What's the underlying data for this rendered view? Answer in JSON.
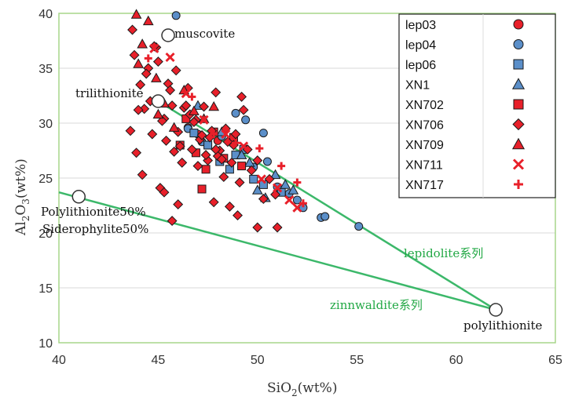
{
  "colors": {
    "red": "#e8202a",
    "blue": "#5b8fc9",
    "green": "#3cb86a",
    "grid": "#d9d9d9",
    "plot_border": "#a7d58a"
  },
  "chart_data": {
    "type": "scatter",
    "xlabel_main": "SiO",
    "xlabel_sub": "2",
    "xlabel_tail": "(wt%)",
    "ylabel_main": "Al",
    "ylabel_sub1": "2",
    "ylabel_mid": "O",
    "ylabel_sub2": "3",
    "ylabel_tail": "(wt%)",
    "xlim": [
      40,
      65
    ],
    "ylim": [
      10,
      40
    ],
    "xticks": [
      "40",
      "45",
      "50",
      "55",
      "60",
      "65"
    ],
    "yticks": [
      "10",
      "15",
      "20",
      "25",
      "30",
      "35",
      "40"
    ],
    "grid": "horizontal",
    "legend_position": "top-right",
    "series": [
      {
        "name": "lep03",
        "marker": "circle",
        "color": "#e8202a",
        "x": [
          46.5,
          47.0,
          48.0
        ],
        "y": [
          29.6,
          29.0,
          28.4
        ]
      },
      {
        "name": "lep04",
        "marker": "circle",
        "color": "#5b8fc9",
        "x": [
          45.9,
          46.5,
          47.2,
          48.2,
          48.9,
          49.4,
          49.8,
          50.3,
          50.5,
          51.0,
          51.6,
          52.0,
          52.3,
          53.2,
          53.4,
          55.1
        ],
        "y": [
          39.8,
          29.5,
          28.3,
          28.8,
          30.9,
          30.3,
          26.0,
          29.1,
          26.5,
          24.2,
          23.6,
          23.0,
          22.3,
          21.4,
          21.5,
          20.6
        ]
      },
      {
        "name": "lep06",
        "marker": "square",
        "color": "#5b8fc9",
        "x": [
          46.8,
          47.5,
          48.1,
          48.6,
          48.9,
          49.3,
          49.8,
          50.3,
          51.2
        ],
        "y": [
          29.1,
          28.0,
          26.5,
          25.8,
          27.1,
          27.6,
          24.9,
          24.4,
          23.7
        ]
      },
      {
        "name": "XN1",
        "marker": "triangle",
        "color": "#5b8fc9",
        "x": [
          47.0,
          48.2,
          48.7,
          49.2,
          49.6,
          50.0,
          50.4,
          50.9,
          51.4,
          51.8
        ],
        "y": [
          31.6,
          29.2,
          28.6,
          27.1,
          26.4,
          23.9,
          23.2,
          25.3,
          24.4,
          23.9
        ]
      },
      {
        "name": "XN702",
        "marker": "square",
        "color": "#e8202a",
        "x": [
          46.4,
          46.9,
          47.4,
          47.8,
          48.3,
          48.8,
          49.2,
          47.2,
          46.1
        ],
        "y": [
          30.4,
          27.3,
          25.8,
          29.2,
          26.8,
          28.7,
          26.1,
          24.0,
          28.0
        ]
      },
      {
        "name": "XN706",
        "marker": "diamond",
        "color": "#e8202a",
        "x": [
          43.6,
          43.9,
          44.1,
          44.3,
          44.5,
          44.7,
          44.9,
          45.1,
          45.3,
          45.5,
          45.7,
          45.9,
          46.1,
          46.3,
          46.5,
          46.7,
          46.9,
          47.1,
          47.3,
          47.5,
          47.7,
          47.9,
          48.1,
          48.3,
          48.5,
          48.7,
          48.9,
          49.1,
          49.3,
          49.5,
          49.7,
          50.0,
          50.3,
          50.6,
          50.9,
          43.8,
          44.0,
          44.4,
          44.8,
          45.2,
          45.6,
          46.0,
          46.4,
          46.8,
          47.2,
          47.6,
          48.0,
          48.4,
          48.8,
          49.2,
          43.7,
          44.2,
          44.6,
          45.0,
          45.4,
          45.8,
          46.2,
          46.6,
          47.0,
          47.4,
          47.8,
          48.2,
          48.6,
          49.0,
          45.1,
          45.3,
          45.7,
          46.0,
          47.9,
          50.0,
          51.0
        ],
        "y": [
          29.3,
          27.3,
          33.5,
          31.3,
          35.0,
          29.0,
          36.9,
          32.1,
          30.4,
          33.6,
          31.6,
          34.8,
          27.9,
          31.4,
          33.2,
          27.6,
          30.3,
          28.5,
          31.5,
          26.6,
          29.3,
          32.8,
          27.5,
          25.1,
          28.3,
          26.4,
          29.0,
          24.6,
          31.2,
          27.6,
          25.7,
          26.6,
          23.1,
          24.9,
          23.5,
          36.2,
          31.2,
          34.5,
          37.0,
          30.2,
          33.0,
          29.2,
          31.6,
          30.1,
          28.9,
          28.7,
          27.0,
          29.5,
          28.0,
          32.4,
          38.5,
          25.3,
          32.0,
          35.6,
          28.4,
          27.4,
          26.4,
          30.8,
          26.1,
          27.1,
          22.8,
          26.7,
          22.4,
          21.6,
          24.1,
          23.7,
          21.1,
          22.6,
          27.6,
          20.5,
          20.5
        ]
      },
      {
        "name": "XN709",
        "marker": "triangle",
        "color": "#e8202a",
        "x": [
          43.9,
          44.2,
          44.5,
          44.9,
          45.3,
          45.8,
          46.3,
          46.8,
          47.3,
          47.8,
          44.0,
          45.0
        ],
        "y": [
          39.9,
          37.2,
          39.3,
          34.1,
          31.8,
          29.6,
          33.0,
          31.1,
          30.4,
          31.5,
          35.4,
          30.8
        ]
      },
      {
        "name": "XN711",
        "marker": "x",
        "color": "#e8202a",
        "x": [
          44.8,
          45.6,
          46.4,
          47.3,
          48.4,
          49.3,
          50.2,
          51.0,
          51.6,
          52.0
        ],
        "y": [
          36.8,
          36.0,
          32.7,
          30.3,
          29.0,
          27.9,
          24.9,
          24.1,
          23.0,
          22.3
        ]
      },
      {
        "name": "XN717",
        "marker": "plus",
        "color": "#e8202a",
        "x": [
          44.5,
          46.7,
          47.8,
          48.9,
          50.1,
          51.2,
          52.0,
          52.3
        ],
        "y": [
          35.9,
          32.4,
          29.0,
          28.2,
          27.7,
          26.1,
          24.6,
          22.7
        ]
      }
    ],
    "reference_points": [
      {
        "label": "muscovite",
        "x": 45.5,
        "y": 38.0
      },
      {
        "label": "trilithionite",
        "x": 45.0,
        "y": 32.0
      },
      {
        "label": "polylithionite",
        "x": 62.0,
        "y": 13.0
      },
      {
        "label_line1": "Polylithionite50%",
        "label_line2": "Siderophylite50%",
        "x": 41.0,
        "y": 23.3
      }
    ],
    "reference_lines": [
      {
        "label": "lepidolite系列",
        "points": [
          [
            45.0,
            32.0
          ],
          [
            62.0,
            13.0
          ]
        ]
      },
      {
        "label": "zinnwaldite系列",
        "points": [
          [
            40.0,
            23.7
          ],
          [
            62.0,
            13.0
          ]
        ]
      }
    ]
  }
}
